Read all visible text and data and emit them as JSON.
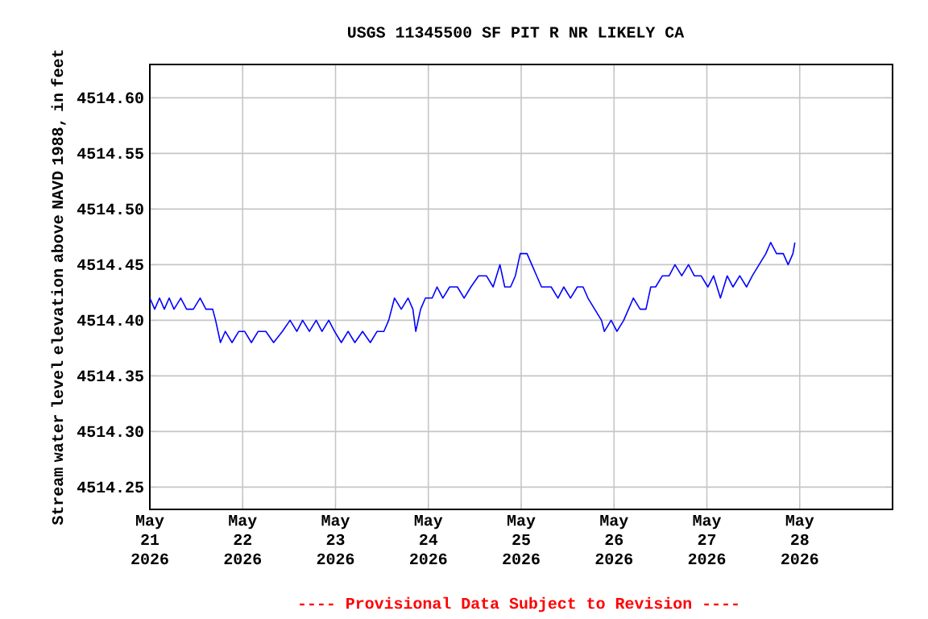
{
  "chart_data": {
    "type": "line",
    "title": "USGS 11345500 SF PIT R NR LIKELY CA",
    "ylabel": "Stream water level elevation above NAVD 1988, in feet",
    "annotations": [
      "---- Provisional Data Subject to Revision ----"
    ],
    "grid": true,
    "xlim": [
      "2026-05-21T00:00",
      "2026-05-29T00:00"
    ],
    "xticks": [
      {
        "value": "2026-05-21",
        "label": "May 21 2026"
      },
      {
        "value": "2026-05-22",
        "label": "May 22 2026"
      },
      {
        "value": "2026-05-23",
        "label": "May 23 2026"
      },
      {
        "value": "2026-05-24",
        "label": "May 24 2026"
      },
      {
        "value": "2026-05-25",
        "label": "May 25 2026"
      },
      {
        "value": "2026-05-26",
        "label": "May 26 2026"
      },
      {
        "value": "2026-05-27",
        "label": "May 27 2026"
      },
      {
        "value": "2026-05-28",
        "label": "May 28 2026"
      }
    ],
    "ylim": [
      4514.23,
      4514.63
    ],
    "yticks": [
      {
        "value": 4514.25,
        "label": "4514.25"
      },
      {
        "value": 4514.3,
        "label": "4514.30"
      },
      {
        "value": 4514.35,
        "label": "4514.35"
      },
      {
        "value": 4514.4,
        "label": "4514.40"
      },
      {
        "value": 4514.45,
        "label": "4514.45"
      },
      {
        "value": 4514.5,
        "label": "4514.50"
      },
      {
        "value": 4514.55,
        "label": "4514.55"
      },
      {
        "value": 4514.6,
        "label": "4514.60"
      }
    ],
    "series": [
      {
        "color": "#0000ff",
        "x": [
          "2026-05-21T00:00",
          "2026-05-21T01:15",
          "2026-05-21T02:30",
          "2026-05-21T03:45",
          "2026-05-21T05:00",
          "2026-05-21T06:15",
          "2026-05-21T08:00",
          "2026-05-21T09:30",
          "2026-05-21T11:15",
          "2026-05-21T13:00",
          "2026-05-21T14:30",
          "2026-05-21T16:15",
          "2026-05-21T17:00",
          "2026-05-21T18:15",
          "2026-05-21T19:30",
          "2026-05-21T21:15",
          "2026-05-21T23:00",
          "2026-05-22T00:30",
          "2026-05-22T02:15",
          "2026-05-22T04:00",
          "2026-05-22T06:00",
          "2026-05-22T08:00",
          "2026-05-22T10:15",
          "2026-05-22T12:15",
          "2026-05-22T14:00",
          "2026-05-22T15:30",
          "2026-05-22T17:15",
          "2026-05-22T19:00",
          "2026-05-22T20:30",
          "2026-05-22T22:15",
          "2026-05-22T23:45",
          "2026-05-23T01:30",
          "2026-05-23T03:15",
          "2026-05-23T05:00",
          "2026-05-23T07:00",
          "2026-05-23T09:00",
          "2026-05-23T10:45",
          "2026-05-23T12:30",
          "2026-05-23T13:45",
          "2026-05-23T15:15",
          "2026-05-23T17:00",
          "2026-05-23T18:45",
          "2026-05-23T20:00",
          "2026-05-23T20:45",
          "2026-05-23T22:00",
          "2026-05-23T23:15",
          "2026-05-24T01:00",
          "2026-05-24T02:15",
          "2026-05-24T03:45",
          "2026-05-24T05:30",
          "2026-05-24T07:30",
          "2026-05-24T09:15",
          "2026-05-24T11:00",
          "2026-05-24T13:00",
          "2026-05-24T15:00",
          "2026-05-24T16:45",
          "2026-05-24T18:30",
          "2026-05-24T19:45",
          "2026-05-24T21:15",
          "2026-05-24T22:30",
          "2026-05-24T23:45",
          "2026-05-25T01:30",
          "2026-05-25T02:45",
          "2026-05-25T04:00",
          "2026-05-25T05:15",
          "2026-05-25T07:45",
          "2026-05-25T09:30",
          "2026-05-25T11:00",
          "2026-05-25T12:45",
          "2026-05-25T14:30",
          "2026-05-25T16:00",
          "2026-05-25T17:15",
          "2026-05-25T19:00",
          "2026-05-25T20:45",
          "2026-05-25T21:30",
          "2026-05-25T23:15",
          "2026-05-26T00:45",
          "2026-05-26T02:30",
          "2026-05-26T03:45",
          "2026-05-26T05:00",
          "2026-05-26T06:45",
          "2026-05-26T08:15",
          "2026-05-26T09:30",
          "2026-05-26T10:45",
          "2026-05-26T12:30",
          "2026-05-26T14:15",
          "2026-05-26T15:45",
          "2026-05-26T17:30",
          "2026-05-26T19:15",
          "2026-05-26T20:45",
          "2026-05-26T22:30",
          "2026-05-27T00:15",
          "2026-05-27T01:45",
          "2026-05-27T03:30",
          "2026-05-27T05:15",
          "2026-05-27T06:45",
          "2026-05-27T08:30",
          "2026-05-27T10:15",
          "2026-05-27T11:45",
          "2026-05-27T13:30",
          "2026-05-27T15:15",
          "2026-05-27T16:30",
          "2026-05-27T18:00",
          "2026-05-27T19:45",
          "2026-05-27T21:00",
          "2026-05-27T22:15",
          "2026-05-27T22:45"
        ],
        "values": [
          4514.42,
          4514.41,
          4514.42,
          4514.41,
          4514.42,
          4514.41,
          4514.42,
          4514.41,
          4514.41,
          4514.42,
          4514.41,
          4514.41,
          4514.4,
          4514.38,
          4514.39,
          4514.38,
          4514.39,
          4514.39,
          4514.38,
          4514.39,
          4514.39,
          4514.38,
          4514.39,
          4514.4,
          4514.39,
          4514.4,
          4514.39,
          4514.4,
          4514.39,
          4514.4,
          4514.39,
          4514.38,
          4514.39,
          4514.38,
          4514.39,
          4514.38,
          4514.39,
          4514.39,
          4514.4,
          4514.42,
          4514.41,
          4514.42,
          4514.41,
          4514.39,
          4514.41,
          4514.42,
          4514.42,
          4514.43,
          4514.42,
          4514.43,
          4514.43,
          4514.42,
          4514.43,
          4514.44,
          4514.44,
          4514.43,
          4514.45,
          4514.43,
          4514.43,
          4514.44,
          4514.46,
          4514.46,
          4514.45,
          4514.44,
          4514.43,
          4514.43,
          4514.42,
          4514.43,
          4514.42,
          4514.43,
          4514.43,
          4514.42,
          4514.41,
          4514.4,
          4514.39,
          4514.4,
          4514.39,
          4514.4,
          4514.41,
          4514.42,
          4514.41,
          4514.41,
          4514.43,
          4514.43,
          4514.44,
          4514.44,
          4514.45,
          4514.44,
          4514.45,
          4514.44,
          4514.44,
          4514.43,
          4514.44,
          4514.42,
          4514.44,
          4514.43,
          4514.44,
          4514.43,
          4514.44,
          4514.45,
          4514.46,
          4514.47,
          4514.46,
          4514.46,
          4514.45,
          4514.46,
          4514.47
        ]
      }
    ]
  }
}
